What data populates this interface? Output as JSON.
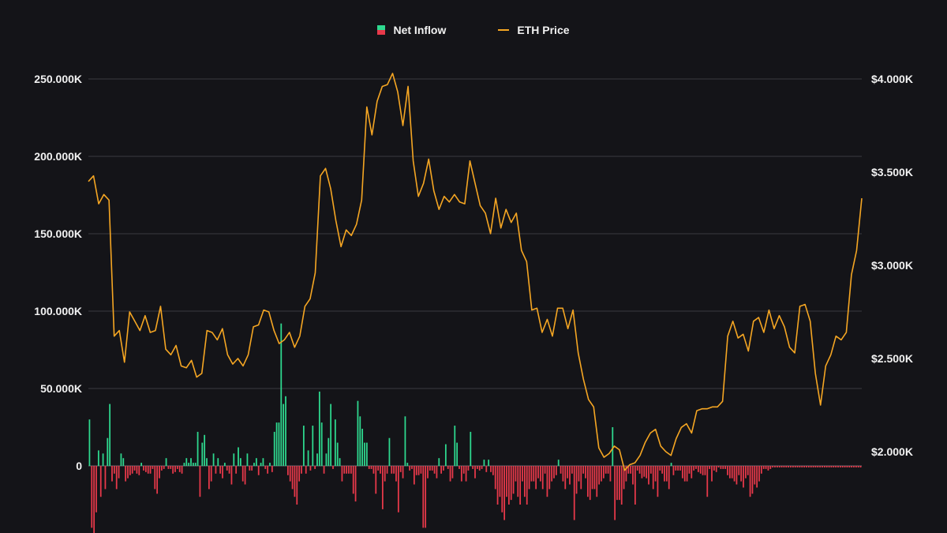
{
  "legend": {
    "inflow_label": "Net Inflow",
    "price_label": "ETH Price"
  },
  "colors": {
    "background": "#141418",
    "positive": "#2ed98f",
    "negative": "#e8394a",
    "price_line": "#f5a623",
    "grid": "#3a3a40"
  },
  "chart_data": {
    "type": "bar",
    "series": [
      {
        "name": "Net Inflow",
        "type": "bar",
        "axis": "left",
        "values": [
          30,
          -40,
          -45,
          -30,
          10,
          -20,
          8,
          -15,
          18,
          40,
          -10,
          -5,
          -15,
          -8,
          8,
          5,
          -10,
          -8,
          -6,
          -5,
          -3,
          -5,
          -6,
          2,
          -3,
          -4,
          -5,
          -5,
          -2,
          -15,
          -18,
          -8,
          -3,
          -2,
          5,
          -2,
          -2,
          -5,
          -4,
          -2,
          -4,
          -5,
          2,
          5,
          2,
          5,
          2,
          2,
          22,
          -20,
          15,
          20,
          5,
          -15,
          -10,
          8,
          -5,
          5,
          -5,
          -8,
          2,
          -3,
          -5,
          -12,
          8,
          -5,
          12,
          5,
          -10,
          -12,
          8,
          -3,
          -3,
          2,
          5,
          -6,
          2,
          5,
          -2,
          -5,
          2,
          -4,
          22,
          28,
          28,
          92,
          40,
          45,
          -6,
          -10,
          -15,
          -20,
          -25,
          -10,
          -5,
          26,
          -5,
          10,
          -3,
          26,
          -2,
          8,
          48,
          28,
          -5,
          8,
          18,
          40,
          -2,
          30,
          15,
          5,
          -10,
          -5,
          -5,
          -5,
          -5,
          -18,
          -23,
          42,
          32,
          24,
          15,
          15,
          -2,
          -2,
          -5,
          -18,
          -3,
          -5,
          -28,
          -10,
          -5,
          18,
          -5,
          -5,
          -10,
          -30,
          -4,
          -8,
          32,
          2,
          -3,
          -2,
          -12,
          -6,
          -6,
          -5,
          -40,
          -40,
          -8,
          -3,
          -3,
          -5,
          -8,
          5,
          -5,
          -3,
          14,
          -2,
          -10,
          -8,
          26,
          15,
          -2,
          -10,
          -5,
          -10,
          -3,
          22,
          -2,
          -8,
          -2,
          -3,
          -2,
          4,
          -4,
          4,
          -4,
          -6,
          -15,
          -25,
          -20,
          -30,
          -35,
          -20,
          -25,
          -22,
          -18,
          -10,
          -20,
          -25,
          -10,
          -20,
          -25,
          -15,
          -10,
          -10,
          -15,
          -8,
          -10,
          -15,
          -5,
          -20,
          -15,
          -10,
          -8,
          -6,
          4,
          -5,
          -10,
          -15,
          -8,
          -12,
          -5,
          -35,
          -18,
          -10,
          -15,
          -5,
          -8,
          -20,
          -22,
          -15,
          -15,
          -20,
          -12,
          -10,
          -8,
          -5,
          -5,
          -10,
          25,
          -35,
          -22,
          -22,
          -25,
          -15,
          -10,
          -5,
          -5,
          -12,
          -25,
          -3,
          -5,
          -8,
          -7,
          -8,
          -12,
          -5,
          -15,
          -10,
          -20,
          -3,
          -5,
          -10,
          -10,
          -15,
          2,
          -6,
          -3,
          -3,
          -3,
          -8,
          -10,
          -10,
          -5,
          -8,
          -3,
          -2,
          -4,
          -5,
          -6,
          -6,
          -20,
          -2,
          -10,
          -3,
          -4,
          -1,
          -2,
          -2,
          -2,
          -6,
          -8,
          -8,
          -10,
          -12,
          -6,
          -10,
          -14,
          -8,
          -6,
          -20,
          -18,
          -12,
          -14,
          -10,
          -5,
          -2,
          -2,
          -3,
          -2,
          -1,
          -1,
          -1,
          -1,
          -1,
          -1,
          -1,
          -1,
          -1,
          -1,
          -1,
          -1,
          -1,
          -1,
          -1,
          -1,
          -1,
          -1,
          -1,
          -1,
          -1,
          -1,
          -1,
          -1,
          -1,
          -1,
          -1,
          -1,
          -1,
          -1,
          -1,
          -1,
          -1,
          -1,
          -1,
          -1,
          -1,
          -1,
          -1,
          -1
        ]
      },
      {
        "name": "ETH Price",
        "type": "line",
        "axis": "right",
        "values": [
          3450,
          3480,
          3330,
          3380,
          3350,
          2620,
          2650,
          2480,
          2750,
          2700,
          2650,
          2730,
          2640,
          2650,
          2780,
          2550,
          2520,
          2570,
          2460,
          2450,
          2490,
          2400,
          2420,
          2650,
          2640,
          2600,
          2660,
          2520,
          2470,
          2500,
          2460,
          2520,
          2670,
          2680,
          2760,
          2750,
          2650,
          2580,
          2600,
          2640,
          2560,
          2620,
          2780,
          2820,
          2960,
          3480,
          3520,
          3410,
          3240,
          3100,
          3190,
          3160,
          3220,
          3350,
          3850,
          3700,
          3880,
          3960,
          3970,
          4030,
          3930,
          3750,
          3960,
          3560,
          3370,
          3440,
          3570,
          3400,
          3300,
          3370,
          3340,
          3380,
          3340,
          3330,
          3560,
          3440,
          3320,
          3280,
          3170,
          3360,
          3200,
          3300,
          3230,
          3280,
          3080,
          3020,
          2760,
          2770,
          2640,
          2710,
          2620,
          2770,
          2770,
          2660,
          2760,
          2530,
          2390,
          2280,
          2240,
          2020,
          1970,
          1990,
          2030,
          2010,
          1900,
          1930,
          1940,
          1980,
          2050,
          2100,
          2120,
          2030,
          2000,
          1980,
          2070,
          2130,
          2150,
          2100,
          2220,
          2230,
          2230,
          2240,
          2240,
          2270,
          2620,
          2700,
          2610,
          2630,
          2540,
          2700,
          2720,
          2640,
          2760,
          2660,
          2730,
          2670,
          2560,
          2530,
          2780,
          2790,
          2700,
          2420,
          2250,
          2460,
          2520,
          2620,
          2600,
          2640,
          2950,
          3080,
          3360
        ]
      }
    ],
    "y_left": {
      "ticks": [
        "0",
        "50.000K",
        "100.000K",
        "150.000K",
        "200.000K",
        "250.000K"
      ],
      "ylim": [
        0,
        250000
      ]
    },
    "y_right": {
      "ticks": [
        "$2.000K",
        "$2.500K",
        "$3.000K",
        "$3.500K",
        "$4.000K"
      ],
      "ylim": [
        2000,
        4000
      ]
    },
    "grid": true,
    "legend_position": "top-center"
  }
}
